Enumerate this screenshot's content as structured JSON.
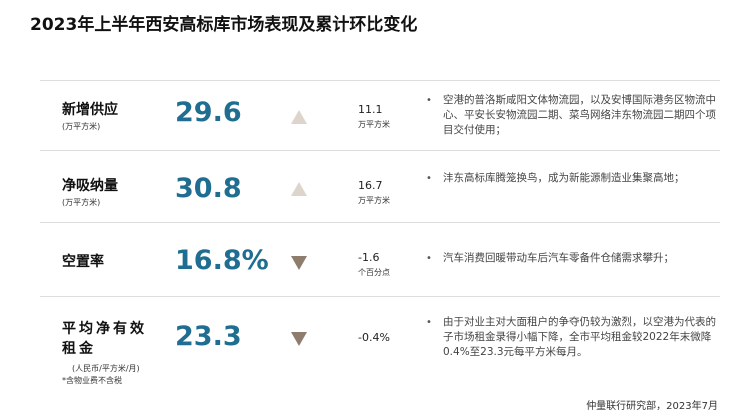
{
  "title": "2023年上半年西安高标库市场表现及累计环比变化",
  "rows": [
    {
      "label": "新增供应",
      "unit": "(万平方米)",
      "value": "29.6",
      "change": "11.1",
      "change_unit": "万平方米",
      "description": "空港的普洛斯咸阳文体物流园，以及安博国际港务区物流中心、平安长安物流园二期、菜鸟网络沣东物流园二期四个项目交付使用；"
    },
    {
      "label": "净吸纳量",
      "unit": "(万平方米)",
      "value": "30.8",
      "change": "16.7",
      "change_unit": "万平方米",
      "description": "沣东高标库腾笼换鸟，成为新能源制造业集聚高地；"
    },
    {
      "label": "空置率",
      "value": "16.8%",
      "change": "-1.6",
      "change_unit": "个百分点",
      "description": "汽车消费回暖带动车后汽车零备件仓储需求攀升；"
    },
    {
      "label": "平均净有效租金",
      "unit": "(人民币/平方米/月)",
      "note": "*含物业费不含税",
      "value": "23.3",
      "change": "-0.4%",
      "description": "由于对业主对大面租户的争夺仍较为激烈，以空港为代表的子市场租金录得小幅下降，全市平均租金较2022年末微降0.4%至23.3元每平方米每月。"
    }
  ],
  "footer": "仲量联行研究部，2023年7月"
}
